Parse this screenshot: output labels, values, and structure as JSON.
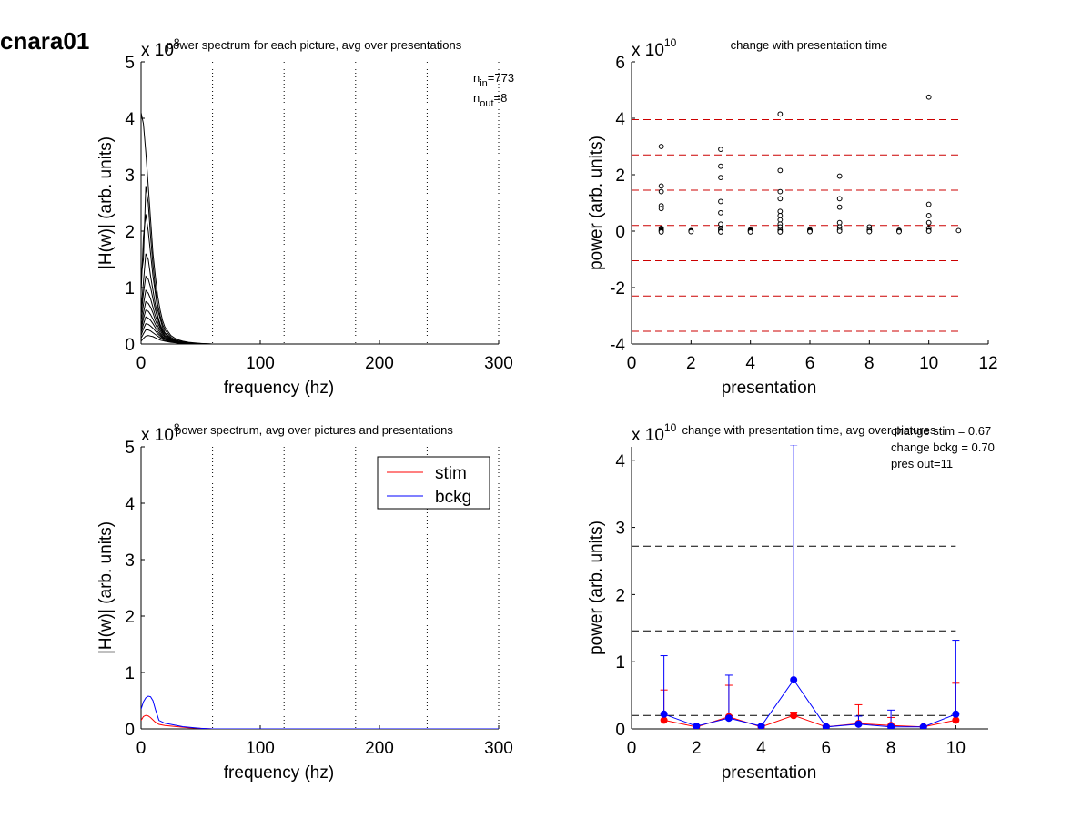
{
  "figure_title": "cnara01",
  "chart_data": [
    {
      "id": "p1",
      "type": "line",
      "title": "power spectrum for each picture, avg over presentations",
      "xlabel": "frequency (hz)",
      "ylabel": "|H(w)| (arb. units)",
      "exponent_label": "x 10",
      "exponent": "8",
      "xlim": [
        0,
        300
      ],
      "ylim": [
        0,
        5
      ],
      "xticks": [
        0,
        100,
        200,
        300
      ],
      "yticks": [
        0,
        1,
        2,
        3,
        4,
        5
      ],
      "vlines": [
        60,
        120,
        180,
        240,
        300
      ],
      "annotations": [
        {
          "base": "n",
          "sub": "in",
          "text": "=773"
        },
        {
          "base": "n",
          "sub": "out",
          "text": "=8"
        }
      ],
      "x": [
        0,
        2,
        4,
        6,
        8,
        10,
        12,
        14,
        16,
        18,
        20,
        25,
        30,
        35,
        40,
        45,
        50,
        60,
        80,
        100,
        150,
        200,
        250,
        300
      ],
      "series": [
        {
          "values": [
            4.1,
            3.9,
            3.4,
            2.8,
            2.2,
            1.6,
            1.2,
            0.85,
            0.6,
            0.42,
            0.3,
            0.15,
            0.08,
            0.05,
            0.03,
            0.02,
            0.01,
            0,
            0,
            0,
            0,
            0,
            0,
            0
          ]
        },
        {
          "values": [
            1.2,
            1.5,
            2.8,
            2.5,
            1.9,
            1.4,
            1.0,
            0.7,
            0.5,
            0.35,
            0.25,
            0.12,
            0.06,
            0.04,
            0.02,
            0.01,
            0.01,
            0,
            0,
            0,
            0,
            0,
            0,
            0
          ]
        },
        {
          "values": [
            0.9,
            1.9,
            2.3,
            2.0,
            1.6,
            1.2,
            0.9,
            0.6,
            0.45,
            0.3,
            0.2,
            0.1,
            0.05,
            0.03,
            0.02,
            0.01,
            0,
            0,
            0,
            0,
            0,
            0,
            0,
            0
          ]
        },
        {
          "values": [
            0.6,
            1.1,
            1.6,
            1.5,
            1.2,
            0.95,
            0.7,
            0.5,
            0.35,
            0.25,
            0.18,
            0.09,
            0.05,
            0.03,
            0.02,
            0.01,
            0,
            0,
            0,
            0,
            0,
            0,
            0,
            0
          ]
        },
        {
          "values": [
            0.5,
            0.9,
            1.2,
            1.15,
            1.0,
            0.8,
            0.6,
            0.45,
            0.32,
            0.22,
            0.15,
            0.08,
            0.04,
            0.03,
            0.02,
            0.01,
            0,
            0,
            0,
            0,
            0,
            0,
            0,
            0
          ]
        },
        {
          "values": [
            0.4,
            0.7,
            0.95,
            0.9,
            0.8,
            0.65,
            0.5,
            0.38,
            0.28,
            0.2,
            0.14,
            0.07,
            0.04,
            0.02,
            0.01,
            0.01,
            0,
            0,
            0,
            0,
            0,
            0,
            0,
            0
          ]
        },
        {
          "values": [
            0.3,
            0.55,
            0.75,
            0.72,
            0.65,
            0.55,
            0.42,
            0.32,
            0.24,
            0.17,
            0.12,
            0.06,
            0.03,
            0.02,
            0.01,
            0,
            0,
            0,
            0,
            0,
            0,
            0,
            0,
            0
          ]
        },
        {
          "values": [
            0.25,
            0.45,
            0.6,
            0.58,
            0.52,
            0.44,
            0.35,
            0.27,
            0.2,
            0.14,
            0.1,
            0.05,
            0.03,
            0.02,
            0.01,
            0,
            0,
            0,
            0,
            0,
            0,
            0,
            0,
            0
          ]
        },
        {
          "values": [
            0.2,
            0.35,
            0.48,
            0.46,
            0.42,
            0.36,
            0.29,
            0.22,
            0.17,
            0.12,
            0.09,
            0.05,
            0.03,
            0.02,
            0.01,
            0,
            0,
            0,
            0,
            0,
            0,
            0,
            0,
            0
          ]
        },
        {
          "values": [
            0.15,
            0.27,
            0.36,
            0.35,
            0.32,
            0.28,
            0.23,
            0.18,
            0.14,
            0.1,
            0.08,
            0.04,
            0.02,
            0.01,
            0.01,
            0,
            0,
            0,
            0,
            0,
            0,
            0,
            0,
            0
          ]
        },
        {
          "values": [
            0.1,
            0.18,
            0.25,
            0.25,
            0.23,
            0.2,
            0.17,
            0.14,
            0.11,
            0.08,
            0.06,
            0.04,
            0.02,
            0.01,
            0.01,
            0,
            0,
            0,
            0,
            0,
            0,
            0,
            0,
            0
          ]
        },
        {
          "values": [
            0.05,
            0.1,
            0.14,
            0.15,
            0.14,
            0.13,
            0.11,
            0.09,
            0.07,
            0.06,
            0.05,
            0.03,
            0.02,
            0.01,
            0,
            0,
            0,
            0,
            0,
            0,
            0,
            0,
            0,
            0
          ]
        }
      ]
    },
    {
      "id": "p2",
      "type": "scatter",
      "title": "change with presentation time",
      "xlabel": "presentation",
      "ylabel": "power (arb. units)",
      "exponent_label": "x 10",
      "exponent": "10",
      "xlim": [
        0,
        12
      ],
      "ylim": [
        -4,
        6
      ],
      "xticks": [
        0,
        2,
        4,
        6,
        8,
        10,
        12
      ],
      "yticks": [
        -4,
        -2,
        0,
        2,
        4,
        6
      ],
      "hlines": [
        3.95,
        2.7,
        1.45,
        0.2,
        -1.05,
        -2.3,
        -3.55
      ],
      "hline_range": [
        0,
        11
      ],
      "hline_color": "#cc0000",
      "points": [
        [
          1,
          3.0
        ],
        [
          1,
          1.6
        ],
        [
          1,
          1.4
        ],
        [
          1,
          0.9
        ],
        [
          1,
          0.8
        ],
        [
          1,
          0.1
        ],
        [
          1,
          0.05
        ],
        [
          1,
          0.02
        ],
        [
          1,
          0.0
        ],
        [
          1,
          -0.03
        ],
        [
          2,
          0.02
        ],
        [
          2,
          0.0
        ],
        [
          2,
          -0.02
        ],
        [
          3,
          2.9
        ],
        [
          3,
          2.3
        ],
        [
          3,
          1.9
        ],
        [
          3,
          1.05
        ],
        [
          3,
          0.65
        ],
        [
          3,
          0.25
        ],
        [
          3,
          0.1
        ],
        [
          3,
          0.05
        ],
        [
          3,
          0.0
        ],
        [
          3,
          -0.03
        ],
        [
          4,
          0.05
        ],
        [
          4,
          0.02
        ],
        [
          4,
          0.0
        ],
        [
          4,
          -0.03
        ],
        [
          5,
          4.15
        ],
        [
          5,
          2.15
        ],
        [
          5,
          1.4
        ],
        [
          5,
          1.15
        ],
        [
          5,
          0.7
        ],
        [
          5,
          0.55
        ],
        [
          5,
          0.4
        ],
        [
          5,
          0.25
        ],
        [
          5,
          0.15
        ],
        [
          5,
          0.05
        ],
        [
          5,
          0.0
        ],
        [
          5,
          -0.03
        ],
        [
          6,
          0.05
        ],
        [
          6,
          0.02
        ],
        [
          6,
          0.0
        ],
        [
          6,
          -0.02
        ],
        [
          7,
          1.95
        ],
        [
          7,
          1.15
        ],
        [
          7,
          0.85
        ],
        [
          7,
          0.3
        ],
        [
          7,
          0.15
        ],
        [
          7,
          0.05
        ],
        [
          7,
          0.0
        ],
        [
          8,
          0.15
        ],
        [
          8,
          0.05
        ],
        [
          8,
          0.0
        ],
        [
          8,
          -0.02
        ],
        [
          9,
          0.03
        ],
        [
          9,
          0.0
        ],
        [
          9,
          -0.02
        ],
        [
          10,
          4.75
        ],
        [
          10,
          0.95
        ],
        [
          10,
          0.55
        ],
        [
          10,
          0.3
        ],
        [
          10,
          0.1
        ],
        [
          10,
          0.02
        ],
        [
          10,
          0.0
        ],
        [
          11,
          0.02
        ]
      ]
    },
    {
      "id": "p3",
      "type": "line",
      "title": "power spectrum, avg over pictures and presentations",
      "xlabel": "frequency (hz)",
      "ylabel": "|H(w)| (arb. units)",
      "exponent_label": "x 10",
      "exponent": "8",
      "xlim": [
        0,
        300
      ],
      "ylim": [
        0,
        5
      ],
      "xticks": [
        0,
        100,
        200,
        300
      ],
      "yticks": [
        0,
        1,
        2,
        3,
        4,
        5
      ],
      "vlines": [
        60,
        120,
        180,
        240,
        300
      ],
      "legend_position": "top-right",
      "legend": [
        {
          "name": "stim",
          "color": "#ff0000"
        },
        {
          "name": "bckg",
          "color": "#0000ff"
        }
      ],
      "x": [
        0,
        2,
        4,
        6,
        8,
        10,
        12,
        15,
        20,
        25,
        30,
        35,
        40,
        50,
        60,
        100,
        150,
        200,
        250,
        300
      ],
      "series": [
        {
          "name": "stim",
          "color": "#ff0000",
          "values": [
            0.15,
            0.22,
            0.24,
            0.23,
            0.2,
            0.16,
            0.12,
            0.08,
            0.06,
            0.05,
            0.04,
            0.03,
            0.02,
            0.01,
            0,
            0,
            0,
            0,
            0,
            0
          ]
        },
        {
          "name": "bckg",
          "color": "#0000ff",
          "values": [
            0.35,
            0.48,
            0.55,
            0.58,
            0.57,
            0.5,
            0.35,
            0.15,
            0.1,
            0.08,
            0.06,
            0.04,
            0.03,
            0.01,
            0,
            0,
            0,
            0,
            0,
            0
          ]
        }
      ]
    },
    {
      "id": "p4",
      "type": "line",
      "title": "change with presentation time, avg over pictures",
      "xlabel": "presentation",
      "ylabel": "power (arb. units)",
      "exponent_label": "x 10",
      "exponent": "10",
      "xlim": [
        0,
        11
      ],
      "ylim": [
        0,
        4.2
      ],
      "xticks": [
        0,
        2,
        4,
        6,
        8,
        10
      ],
      "yticks": [
        0,
        1,
        2,
        3,
        4
      ],
      "hlines": [
        2.72,
        1.46,
        0.2
      ],
      "hline_range": [
        0,
        10
      ],
      "hline_color": "#000000",
      "annotations": [
        "change stim = 0.67",
        "change bckg = 0.70",
        "pres out=11"
      ],
      "x": [
        1,
        2,
        3,
        4,
        5,
        6,
        7,
        8,
        9,
        10
      ],
      "series": [
        {
          "name": "stim",
          "color": "#ff0000",
          "values": [
            0.13,
            0.03,
            0.18,
            0.03,
            0.2,
            0.03,
            0.08,
            0.05,
            0.03,
            0.13
          ],
          "err": [
            0.45,
            0.02,
            0.47,
            0.02,
            0.05,
            0.02,
            0.28,
            0.12,
            0.01,
            0.55
          ]
        },
        {
          "name": "bckg",
          "color": "#0000ff",
          "values": [
            0.22,
            0.04,
            0.16,
            0.04,
            0.73,
            0.03,
            0.07,
            0.03,
            0.03,
            0.22
          ],
          "err": [
            0.87,
            0.02,
            0.64,
            0.02,
            3.5,
            0.02,
            0.12,
            0.25,
            0.01,
            1.1
          ]
        }
      ]
    }
  ]
}
